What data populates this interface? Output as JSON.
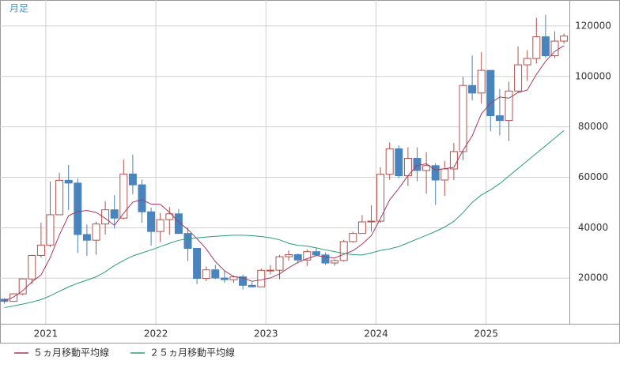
{
  "chart_data": {
    "type": "candlestick",
    "title": "月足",
    "categories": [
      null,
      null,
      null,
      null,
      "2021",
      null,
      null,
      null,
      null,
      null,
      null,
      null,
      null,
      null,
      null,
      null,
      "2022",
      null,
      null,
      null,
      null,
      null,
      null,
      null,
      null,
      null,
      null,
      null,
      "2023",
      null,
      null,
      null,
      null,
      null,
      null,
      null,
      null,
      null,
      null,
      null,
      "2024",
      null,
      null,
      null,
      null,
      null,
      null,
      null,
      null,
      null,
      null,
      null,
      "2025",
      null,
      null,
      null,
      null,
      null,
      null,
      null,
      null,
      null
    ],
    "open": [
      11650,
      10777,
      13781,
      19700,
      28990,
      33110,
      45140,
      58790,
      57700,
      37300,
      35040,
      41460,
      47100,
      43800,
      61300,
      57000,
      46300,
      38500,
      43200,
      45500,
      37700,
      31800,
      19900,
      23300,
      20050,
      19400,
      20500,
      17150,
      16550,
      23100,
      23150,
      28500,
      29300,
      27200,
      30500,
      29200,
      26000,
      27000,
      34500,
      37700,
      42300,
      42600,
      61200,
      71300,
      60600,
      67500,
      62700,
      64600,
      58900,
      63300,
      70200,
      96400,
      93400,
      102400,
      84400,
      82500,
      94200,
      104600,
      107100,
      115700,
      108200,
      114000
    ],
    "high": [
      12050,
      14000,
      19845,
      29300,
      41950,
      58330,
      61780,
      64850,
      59500,
      41300,
      42400,
      50500,
      52900,
      67000,
      69000,
      59100,
      48000,
      45800,
      48200,
      47400,
      40000,
      31900,
      24600,
      25200,
      22700,
      21000,
      21450,
      18400,
      23900,
      25200,
      29200,
      31000,
      29800,
      31400,
      31800,
      30200,
      27500,
      35200,
      38400,
      45000,
      48900,
      64000,
      73800,
      72700,
      71900,
      71900,
      70000,
      65600,
      66500,
      73600,
      99800,
      108300,
      109600,
      102500,
      95000,
      97900,
      111900,
      110400,
      123200,
      124500,
      117900,
      117000
    ],
    "low": [
      9900,
      10542,
      13200,
      17600,
      28130,
      32300,
      45000,
      47000,
      30000,
      28800,
      29300,
      37300,
      39600,
      43300,
      53250,
      42000,
      32900,
      34300,
      37200,
      37600,
      26700,
      17600,
      18800,
      19600,
      18200,
      18200,
      15500,
      16300,
      16500,
      21400,
      19600,
      26900,
      25800,
      24800,
      28900,
      25300,
      24900,
      26600,
      34100,
      37600,
      38500,
      41900,
      59000,
      59600,
      56500,
      58400,
      53500,
      49000,
      52600,
      58900,
      66800,
      90500,
      89200,
      78200,
      76600,
      74400,
      93400,
      98200,
      105100,
      107300,
      107300,
      113000
    ],
    "close": [
      10780,
      13780,
      19700,
      28990,
      33110,
      45140,
      58790,
      57700,
      37300,
      35040,
      41460,
      47100,
      43800,
      61300,
      57000,
      46300,
      38500,
      43200,
      45500,
      37700,
      31800,
      19900,
      23300,
      20050,
      19400,
      20500,
      17150,
      16550,
      23100,
      23150,
      28500,
      29300,
      27200,
      30500,
      29200,
      26000,
      27000,
      34500,
      37700,
      42300,
      42600,
      61200,
      71300,
      60600,
      67500,
      62700,
      64600,
      58900,
      63300,
      70200,
      96400,
      93400,
      102400,
      84400,
      82500,
      94200,
      104600,
      107100,
      115700,
      108200,
      114000,
      116000
    ],
    "up_color": "#b5524c",
    "down_color": "#4a84bd",
    "overlays": [
      {
        "name": "５ヵ月移動平均線",
        "color": "#a8385e",
        "values": [
          11000,
          12500,
          15000,
          18500,
          21272,
          28144,
          37146,
          44746,
          46408,
          46794,
          46058,
          43720,
          40940,
          45740,
          50132,
          51100,
          49380,
          49260,
          46100,
          42240,
          39340,
          35620,
          31640,
          26550,
          22890,
          20630,
          20080,
          18730,
          19340,
          20090,
          21690,
          24120,
          26250,
          27730,
          28940,
          28440,
          27980,
          29440,
          30880,
          33500,
          36820,
          43660,
          51020,
          55600,
          60640,
          64660,
          65340,
          62860,
          63400,
          63940,
          70680,
          76440,
          85140,
          89360,
          91820,
          91380,
          93620,
          94560,
          100820,
          105960,
          109920,
          112200
        ]
      },
      {
        "name": "２５ヵ月移動平均線",
        "color": "#2a9d78",
        "values": [
          8300,
          9000,
          9700,
          10500,
          11500,
          13000,
          14800,
          16500,
          18000,
          19200,
          20500,
          22500,
          25000,
          27000,
          28800,
          30000,
          31200,
          32500,
          33800,
          35000,
          35600,
          36000,
          36300,
          36600,
          36800,
          37000,
          37000,
          36800,
          36500,
          36000,
          35200,
          33800,
          33000,
          32700,
          32000,
          31200,
          30500,
          29800,
          29300,
          29200,
          30000,
          31000,
          31600,
          32500,
          34000,
          35500,
          37000,
          38500,
          40300,
          42500,
          46000,
          50000,
          53000,
          55000,
          57500,
          60500,
          63500,
          66500,
          69500,
          72500,
          75500,
          78500
        ]
      }
    ],
    "ylim": [
      1900,
      130300
    ],
    "yticks": [
      20000,
      40000,
      60000,
      80000,
      100000,
      120000
    ],
    "grid": true
  }
}
